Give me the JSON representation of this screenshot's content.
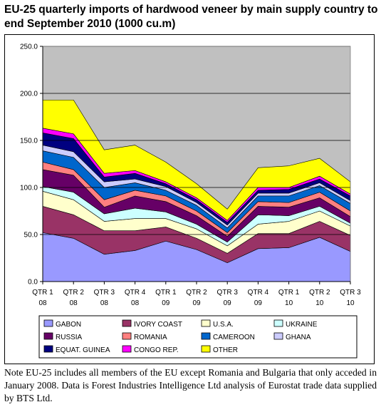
{
  "title": "EU-25 quarterly imports of hardwood veneer by main supply country to end September 2010 (1000 cu.m)",
  "note": "Note EU-25 includes all members of the EU except Romania and Bulgaria that only acceded in January 2008. Data is Forest Industries Intelligence Ltd analysis of Eurostat trade data supplied by BTS Ltd.",
  "chart_data": {
    "type": "area",
    "stacked": true,
    "title": "",
    "xlabel": "",
    "ylabel": "",
    "ylim": [
      0,
      250
    ],
    "yticks": [
      "0.0",
      "50.0",
      "100.0",
      "150.0",
      "200.0",
      "250.0"
    ],
    "grid": true,
    "plot_background": "#c0c0c0",
    "legend_position": "bottom",
    "categories": [
      [
        "QTR 1",
        "08"
      ],
      [
        "QTR 2",
        "08"
      ],
      [
        "QTR 3",
        "08"
      ],
      [
        "QTR 4",
        "08"
      ],
      [
        "QTR 1",
        "09"
      ],
      [
        "QTR 2",
        "09"
      ],
      [
        "QTR 3",
        "09"
      ],
      [
        "QTR 4",
        "09"
      ],
      [
        "QTR 1",
        "10"
      ],
      [
        "QTR 2",
        "10"
      ],
      [
        "QTR 3",
        "10"
      ]
    ],
    "series": [
      {
        "name": "GABON",
        "color": "#9999ff",
        "values": [
          52,
          46,
          29,
          33,
          43,
          34,
          20,
          35,
          36,
          47,
          32
        ]
      },
      {
        "name": "IVORY COAST",
        "color": "#993366",
        "values": [
          28,
          25,
          25,
          21,
          15,
          12,
          10,
          16,
          15,
          17,
          17
        ]
      },
      {
        "name": "U.S.A.",
        "color": "#ffffcc",
        "values": [
          16,
          16,
          10,
          13,
          9,
          10,
          8,
          10,
          13,
          11,
          10
        ]
      },
      {
        "name": "UKRAINE",
        "color": "#ccffff",
        "values": [
          5,
          8,
          8,
          11,
          7,
          5,
          4,
          10,
          6,
          5,
          3
        ]
      },
      {
        "name": "RUSSIA",
        "color": "#660066",
        "values": [
          18,
          18,
          7,
          13,
          11,
          9,
          6,
          9,
          9,
          9,
          7
        ]
      },
      {
        "name": "ROMANIA",
        "color": "#ff8080",
        "values": [
          8,
          6,
          8,
          6,
          6,
          5,
          4,
          5,
          5,
          6,
          6
        ]
      },
      {
        "name": "CAMEROON",
        "color": "#0066cc",
        "values": [
          12,
          13,
          13,
          8,
          6,
          6,
          5,
          6,
          7,
          7,
          8
        ]
      },
      {
        "name": "GHANA",
        "color": "#ccccff",
        "values": [
          6,
          6,
          6,
          4,
          4,
          3,
          3,
          3,
          3,
          3,
          3
        ]
      },
      {
        "name": "EQUAT. GUINEA",
        "color": "#000080",
        "values": [
          13,
          14,
          5,
          6,
          3,
          3,
          3,
          3,
          4,
          4,
          5
        ]
      },
      {
        "name": "CONGO REP.",
        "color": "#ff00ff",
        "values": [
          5,
          5,
          4,
          3,
          2,
          2,
          2,
          3,
          2,
          3,
          2
        ]
      },
      {
        "name": "OTHER",
        "color": "#ffff00",
        "values": [
          30,
          36,
          25,
          27,
          21,
          15,
          12,
          21,
          23,
          19,
          13
        ]
      }
    ]
  }
}
